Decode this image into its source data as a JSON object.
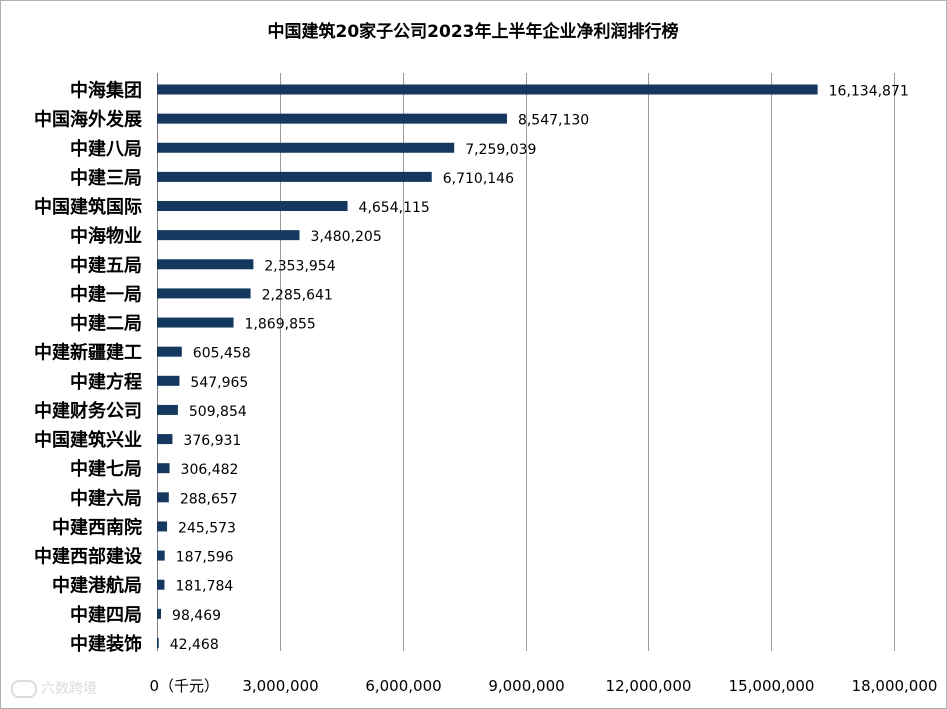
{
  "chart_data": {
    "type": "bar",
    "orientation": "horizontal",
    "title": "中国建筑20家子公司2023年上半年企业净利润排行榜",
    "xlabel": "（千元）",
    "ylabel": "",
    "xlim": [
      0,
      18000000
    ],
    "tick_values": [
      0,
      3000000,
      6000000,
      9000000,
      12000000,
      15000000,
      18000000
    ],
    "tick_labels": [
      "0（千元）",
      "3,000,000",
      "6,000,000",
      "9,000,000",
      "12,000,000",
      "15,000,000",
      "18,000,000"
    ],
    "grid": true,
    "legend": "none",
    "bar_color": "#14385e",
    "categories": [
      "中海集团",
      "中国海外发展",
      "中建八局",
      "中建三局",
      "中国建筑国际",
      "中海物业",
      "中建五局",
      "中建一局",
      "中建二局",
      "中建新疆建工",
      "中建方程",
      "中建财务公司",
      "中国建筑兴业",
      "中建七局",
      "中建六局",
      "中建西南院",
      "中建西部建设",
      "中建港航局",
      "中建四局",
      "中建装饰"
    ],
    "values": [
      16134871,
      8547130,
      7259039,
      6710146,
      4654115,
      3480205,
      2353954,
      2285641,
      1869855,
      605458,
      547965,
      509854,
      376931,
      306482,
      288657,
      245573,
      187596,
      181784,
      98469,
      42468
    ],
    "value_labels": [
      "16,134,871",
      "8,547,130",
      "7,259,039",
      "6,710,146",
      "4,654,115",
      "3,480,205",
      "2,353,954",
      "2,285,641",
      "1,869,855",
      "605,458",
      "547,965",
      "509,854",
      "376,931",
      "306,482",
      "288,657",
      "245,573",
      "187,596",
      "181,784",
      "98,469",
      "42,468"
    ]
  },
  "watermark": {
    "text": "六数跨境",
    "icon": "six-logo-icon"
  }
}
